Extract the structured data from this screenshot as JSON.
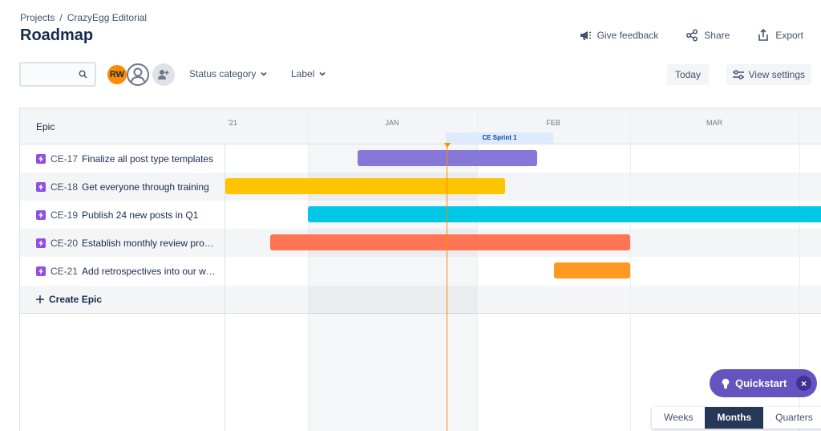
{
  "breadcrumb": {
    "projects": "Projects",
    "separator": "/",
    "project": "CrazyEgg Editorial"
  },
  "page_title": "Roadmap",
  "header_actions": {
    "feedback": "Give feedback",
    "share": "Share",
    "export": "Export"
  },
  "toolbar": {
    "search_placeholder": "",
    "avatar_initials": "RW",
    "status_filter": "Status category",
    "label_filter": "Label",
    "today": "Today",
    "view_settings": "View settings"
  },
  "roadmap": {
    "epic_header": "Epic",
    "months": [
      "'21",
      "JAN",
      "FEB",
      "MAR"
    ],
    "sprint": "CE Sprint 1",
    "create_epic": "Create Epic",
    "epics": [
      {
        "key": "CE-17",
        "name": "Finalize all post type templates",
        "color": "#8777D9"
      },
      {
        "key": "CE-18",
        "name": "Get everyone through training",
        "color": "#FFC400"
      },
      {
        "key": "CE-19",
        "name": "Publish 24 new posts in Q1",
        "color": "#00C7E6"
      },
      {
        "key": "CE-20",
        "name": "Establish monthly review process",
        "color": "#FF7452"
      },
      {
        "key": "CE-21",
        "name": "Add retrospectives into our writin...",
        "color": "#FF991F"
      }
    ]
  },
  "quickstart": {
    "label": "Quickstart",
    "close": "×"
  },
  "zoom": {
    "weeks": "Weeks",
    "months": "Months",
    "quarters": "Quarters",
    "selected": "Months"
  },
  "colors": {
    "accent": "#6554C0",
    "today_line": "#FF8B00",
    "sprint_bg": "#DEEBFF"
  }
}
